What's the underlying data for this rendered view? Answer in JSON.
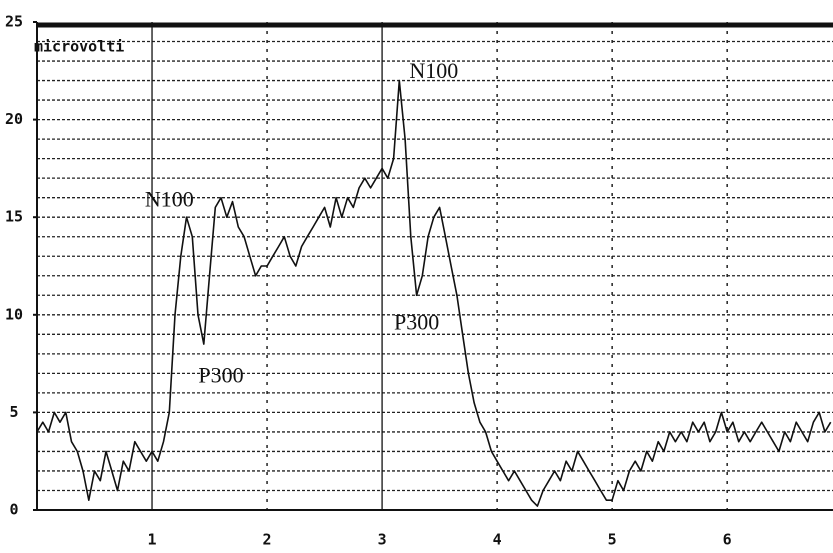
{
  "chart_data": {
    "type": "line",
    "y_label": "microvolti",
    "color": "#111111",
    "xlim": [
      0,
      6.92
    ],
    "ylim": [
      0,
      25
    ],
    "xticks": [
      1,
      2,
      3,
      4,
      5,
      6
    ],
    "yticks": [
      0,
      5,
      10,
      15,
      20,
      25
    ],
    "grid": true,
    "minor_grid_step": 1,
    "event_markers": [
      1,
      3
    ],
    "annotations": [
      {
        "text": "N100",
        "x": 1.15,
        "y": 15.8
      },
      {
        "text": "P300",
        "x": 1.6,
        "y": 6.8
      },
      {
        "text": "N100",
        "x": 3.45,
        "y": 22.4
      },
      {
        "text": "P300",
        "x": 3.3,
        "y": 9.5
      }
    ],
    "x": [
      0,
      0.05,
      0.1,
      0.15,
      0.2,
      0.25,
      0.3,
      0.35,
      0.4,
      0.45,
      0.5,
      0.55,
      0.6,
      0.65,
      0.7,
      0.75,
      0.8,
      0.85,
      0.9,
      0.95,
      1,
      1.05,
      1.1,
      1.15,
      1.2,
      1.25,
      1.3,
      1.35,
      1.4,
      1.45,
      1.5,
      1.55,
      1.6,
      1.65,
      1.7,
      1.75,
      1.8,
      1.85,
      1.9,
      1.95,
      2,
      2.05,
      2.1,
      2.15,
      2.2,
      2.25,
      2.3,
      2.35,
      2.4,
      2.45,
      2.5,
      2.55,
      2.6,
      2.65,
      2.7,
      2.75,
      2.8,
      2.85,
      2.9,
      2.95,
      3,
      3.05,
      3.1,
      3.15,
      3.2,
      3.25,
      3.3,
      3.35,
      3.4,
      3.45,
      3.5,
      3.55,
      3.6,
      3.65,
      3.7,
      3.75,
      3.8,
      3.85,
      3.9,
      3.95,
      4,
      4.05,
      4.1,
      4.15,
      4.2,
      4.25,
      4.3,
      4.35,
      4.4,
      4.45,
      4.5,
      4.55,
      4.6,
      4.65,
      4.7,
      4.75,
      4.8,
      4.85,
      4.9,
      4.95,
      5,
      5.05,
      5.1,
      5.15,
      5.2,
      5.25,
      5.3,
      5.35,
      5.4,
      5.45,
      5.5,
      5.55,
      5.6,
      5.65,
      5.7,
      5.75,
      5.8,
      5.85,
      5.9,
      5.95,
      6,
      6.05,
      6.1,
      6.15,
      6.2,
      6.25,
      6.3,
      6.35,
      6.4,
      6.45,
      6.5,
      6.55,
      6.6,
      6.65,
      6.7,
      6.75,
      6.8,
      6.85,
      6.9
    ],
    "values": [
      4,
      4.5,
      4,
      5,
      4.5,
      5,
      3.5,
      3,
      2,
      0.5,
      2,
      1.5,
      3,
      2,
      1,
      2.5,
      2,
      3.5,
      3,
      2.5,
      3,
      2.5,
      3.5,
      5,
      10,
      13,
      15,
      14,
      10,
      8.5,
      12,
      15.5,
      16,
      15,
      15.8,
      14.5,
      14,
      13,
      12,
      12.5,
      12.5,
      13,
      13.5,
      14,
      13,
      12.5,
      13.5,
      14,
      14.5,
      15,
      15.5,
      14.5,
      16,
      15,
      16,
      15.5,
      16.5,
      17,
      16.5,
      17,
      17.5,
      17,
      18,
      22,
      19,
      14,
      11,
      12,
      14,
      15,
      15.5,
      14,
      12.5,
      11,
      9,
      7,
      5.5,
      4.5,
      4,
      3,
      2.5,
      2,
      1.5,
      2,
      1.5,
      1,
      0.5,
      0.2,
      1,
      1.5,
      2,
      1.5,
      2.5,
      2,
      3,
      2.5,
      2,
      1.5,
      1,
      0.5,
      0.5,
      1.5,
      1,
      2,
      2.5,
      2,
      3,
      2.5,
      3.5,
      3,
      4,
      3.5,
      4,
      3.5,
      4.5,
      4,
      4.5,
      3.5,
      4,
      5,
      4,
      4.5,
      3.5,
      4,
      3.5,
      4,
      4.5,
      4,
      3.5,
      3,
      4,
      3.5,
      4.5,
      4,
      3.5,
      4.5,
      5,
      4,
      4.5
    ]
  }
}
